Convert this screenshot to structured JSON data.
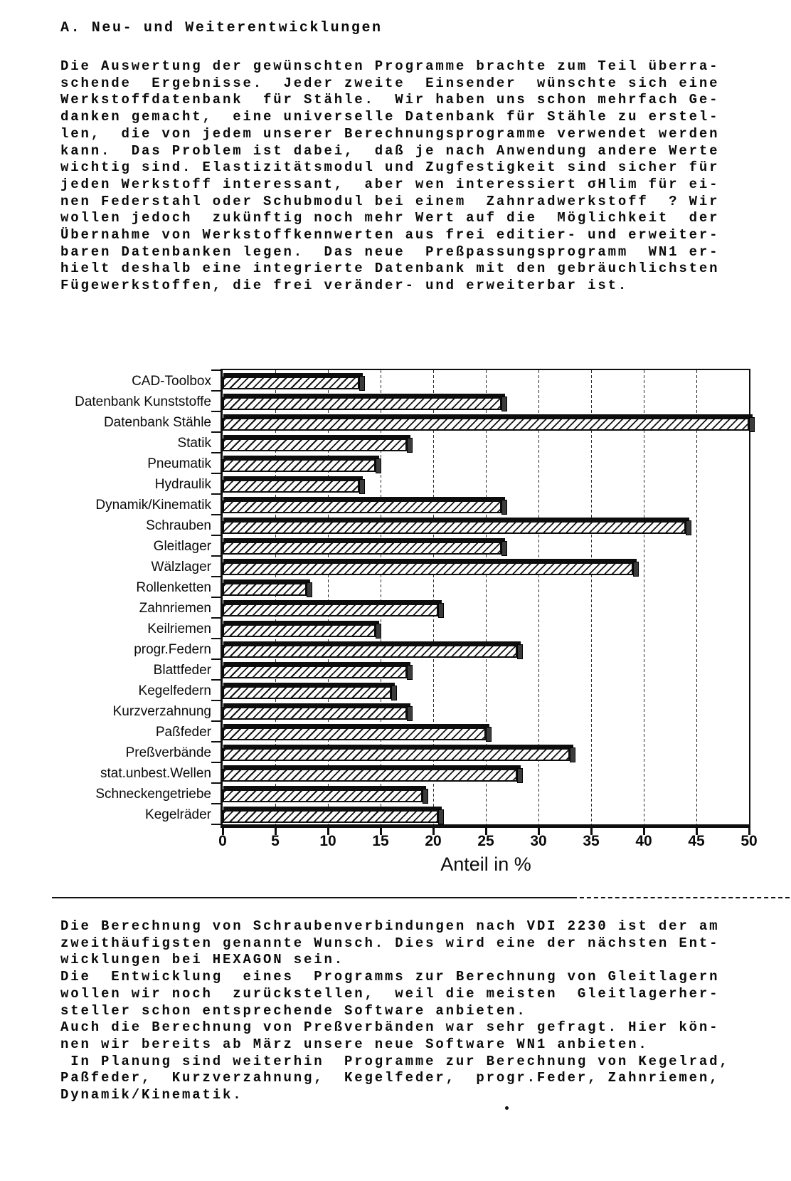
{
  "page": {
    "heading": "A. Neu- und Weiterentwicklungen",
    "paragraph_top_lines": [
      "Die Auswertung der gewünschten Programme brachte zum Teil überra-",
      "schende  Ergebnisse.  Jeder zweite  Einsender  wünschte sich eine",
      "Werkstoffdatenbank  für Stähle.  Wir haben uns schon mehrfach Ge-",
      "danken gemacht,  eine universelle Datenbank für Stähle zu erstel-",
      "len,  die von jedem unserer Berechnungsprogramme verwendet werden",
      "kann.  Das Problem ist dabei,  daß je nach Anwendung andere Werte",
      "wichtig sind. Elastizitätsmodul und Zugfestigkeit sind sicher für",
      "jeden Werkstoff interessant,  aber wen interessiert σHlim für ei-",
      "nen Federstahl oder Schubmodul bei einem  Zahnradwerkstoff  ? Wir",
      "wollen jedoch  zukünftig noch mehr Wert auf die  Möglichkeit  der",
      "Übernahme von Werkstoffkennwerten aus frei editier- und erweiter-",
      "baren Datenbanken legen.  Das neue  Preßpassungsprogramm  WN1 er-",
      "hielt deshalb eine integrierte Datenbank mit den gebräuchlichsten",
      "Fügewerkstoffen, die frei veränder- und erweiterbar ist."
    ],
    "paragraph_bottom_lines": [
      "Die Berechnung von Schraubenverbindungen nach VDI 2230 ist der am",
      "zweithäufigsten genannte Wunsch. Dies wird eine der nächsten Ent-",
      "wicklungen bei HEXAGON sein.",
      "Die  Entwicklung  eines  Programms zur Berechnung von Gleitlagern",
      "wollen wir noch  zurückstellen,  weil die meisten  Gleitlagerher-",
      "steller schon entsprechende Software anbieten.",
      "Auch die Berechnung von Preßverbänden war sehr gefragt. Hier kön-",
      "nen wir bereits ab März unsere neue Software WN1 anbieten.",
      " In Planung sind weiterhin  Programme zur Berechnung von Kegelrad,",
      "Paßfeder,  Kurzverzahnung,  Kegelfeder,  progr.Feder, Zahnriemen,",
      "Dynamik/Kinematik."
    ],
    "stray_mark": "."
  },
  "chart_data": {
    "type": "bar",
    "orientation": "horizontal",
    "title": "",
    "xlabel": "Anteil in %",
    "ylabel": "",
    "xlim": [
      0,
      50
    ],
    "xticks": [
      0,
      5,
      10,
      15,
      20,
      25,
      30,
      35,
      40,
      45,
      50
    ],
    "grid": "vertical dashed gridlines every 5 units",
    "legend": "none",
    "bar_style": "black-and-white diagonal hatching with 3D black top band",
    "categories": [
      "CAD-Toolbox",
      "Datenbank Kunststoffe",
      "Datenbank Stähle",
      "Statik",
      "Pneumatik",
      "Hydraulik",
      "Dynamik/Kinematik",
      "Schrauben",
      "Gleitlager",
      "Wälzlager",
      "Rollenketten",
      "Zahnriemen",
      "Keilriemen",
      "progr.Federn",
      "Blattfeder",
      "Kegelfedern",
      "Kurzverzahnung",
      "Paßfeder",
      "Preßverbände",
      "stat.unbest.Wellen",
      "Schneckengetriebe",
      "Kegelräder"
    ],
    "values": [
      13,
      26.5,
      50,
      17.5,
      14.5,
      13,
      26.5,
      44,
      26.5,
      39,
      8,
      20.5,
      14.5,
      28,
      17.5,
      16,
      17.5,
      25,
      33,
      28,
      19,
      20.5
    ]
  }
}
